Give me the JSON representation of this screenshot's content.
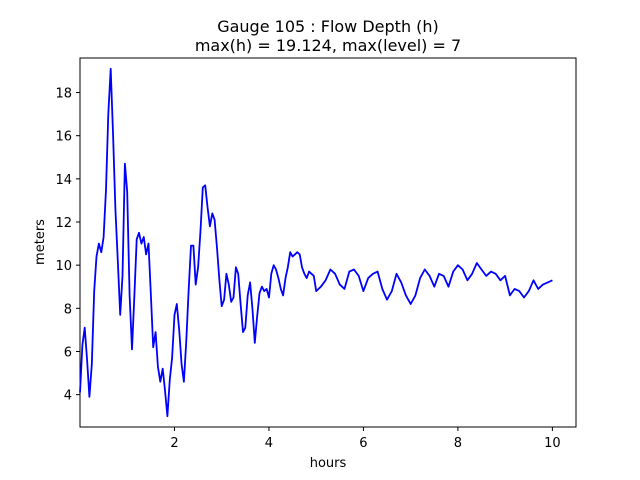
{
  "chart_data": {
    "type": "line",
    "title_line1": "Gauge 105 : Flow Depth (h)",
    "title_line2": "max(h) =  19.124,    max(level) = 7",
    "xlabel": "hours",
    "ylabel": "meters",
    "xlim": [
      0.0,
      10.5
    ],
    "ylim": [
      2.5,
      19.6
    ],
    "x_ticks": [
      2,
      4,
      6,
      8,
      10
    ],
    "y_ticks": [
      4,
      6,
      8,
      10,
      12,
      14,
      16,
      18
    ],
    "series": [
      {
        "color": "#0000ff",
        "x": [
          0.0,
          0.05,
          0.1,
          0.15,
          0.2,
          0.25,
          0.3,
          0.35,
          0.4,
          0.45,
          0.5,
          0.55,
          0.6,
          0.65,
          0.7,
          0.75,
          0.8,
          0.85,
          0.9,
          0.95,
          1.0,
          1.05,
          1.1,
          1.15,
          1.2,
          1.25,
          1.3,
          1.35,
          1.4,
          1.45,
          1.5,
          1.55,
          1.6,
          1.65,
          1.7,
          1.75,
          1.8,
          1.85,
          1.9,
          1.95,
          2.0,
          2.05,
          2.1,
          2.15,
          2.2,
          2.25,
          2.3,
          2.35,
          2.4,
          2.45,
          2.5,
          2.55,
          2.6,
          2.65,
          2.7,
          2.75,
          2.8,
          2.85,
          2.9,
          2.95,
          3.0,
          3.05,
          3.1,
          3.15,
          3.2,
          3.25,
          3.3,
          3.35,
          3.4,
          3.45,
          3.5,
          3.55,
          3.6,
          3.65,
          3.7,
          3.75,
          3.8,
          3.85,
          3.9,
          3.95,
          4.0,
          4.05,
          4.1,
          4.15,
          4.2,
          4.25,
          4.3,
          4.35,
          4.4,
          4.45,
          4.5,
          4.55,
          4.6,
          4.65,
          4.7,
          4.75,
          4.8,
          4.85,
          4.9,
          4.95,
          5.0,
          5.1,
          5.2,
          5.3,
          5.4,
          5.5,
          5.6,
          5.7,
          5.8,
          5.9,
          6.0,
          6.1,
          6.2,
          6.3,
          6.4,
          6.5,
          6.6,
          6.7,
          6.8,
          6.9,
          7.0,
          7.1,
          7.2,
          7.3,
          7.4,
          7.5,
          7.6,
          7.7,
          7.8,
          7.9,
          8.0,
          8.1,
          8.2,
          8.3,
          8.4,
          8.5,
          8.6,
          8.7,
          8.8,
          8.9,
          9.0,
          9.1,
          9.2,
          9.3,
          9.4,
          9.5,
          9.6,
          9.7,
          9.8,
          9.9,
          10.0
        ],
        "y": [
          4.1,
          6.3,
          7.1,
          5.6,
          3.9,
          5.4,
          8.8,
          10.4,
          11.0,
          10.6,
          11.3,
          13.5,
          17.0,
          19.1,
          16.0,
          12.6,
          10.2,
          7.7,
          9.5,
          14.7,
          13.4,
          8.6,
          6.1,
          8.5,
          11.2,
          11.5,
          11.0,
          11.3,
          10.5,
          11.0,
          8.6,
          6.2,
          6.9,
          5.3,
          4.6,
          5.2,
          4.2,
          3.0,
          4.7,
          5.7,
          7.7,
          8.2,
          7.0,
          5.4,
          4.6,
          6.5,
          8.8,
          10.9,
          10.9,
          9.1,
          9.9,
          11.6,
          13.6,
          13.7,
          12.7,
          11.8,
          12.4,
          12.1,
          10.8,
          9.3,
          8.1,
          8.4,
          9.6,
          9.1,
          8.3,
          8.5,
          9.9,
          9.6,
          8.2,
          6.9,
          7.1,
          8.6,
          9.2,
          8.0,
          6.4,
          7.6,
          8.7,
          9.0,
          8.8,
          8.9,
          8.5,
          9.6,
          10.0,
          9.8,
          9.4,
          8.9,
          8.6,
          9.4,
          9.9,
          10.6,
          10.4,
          10.5,
          10.6,
          10.5,
          9.9,
          9.6,
          9.4,
          9.7,
          9.6,
          9.5,
          8.8,
          9.0,
          9.3,
          9.8,
          9.6,
          9.1,
          8.9,
          9.7,
          9.8,
          9.5,
          8.8,
          9.4,
          9.6,
          9.7,
          8.9,
          8.4,
          8.8,
          9.6,
          9.2,
          8.6,
          8.2,
          8.6,
          9.4,
          9.8,
          9.5,
          9.0,
          9.6,
          9.5,
          9.0,
          9.7,
          10.0,
          9.8,
          9.3,
          9.6,
          10.1,
          9.8,
          9.5,
          9.7,
          9.6,
          9.3,
          9.5,
          8.6,
          8.9,
          8.8,
          8.5,
          8.8,
          9.3,
          8.9,
          9.1,
          9.2,
          9.3
        ]
      }
    ]
  }
}
